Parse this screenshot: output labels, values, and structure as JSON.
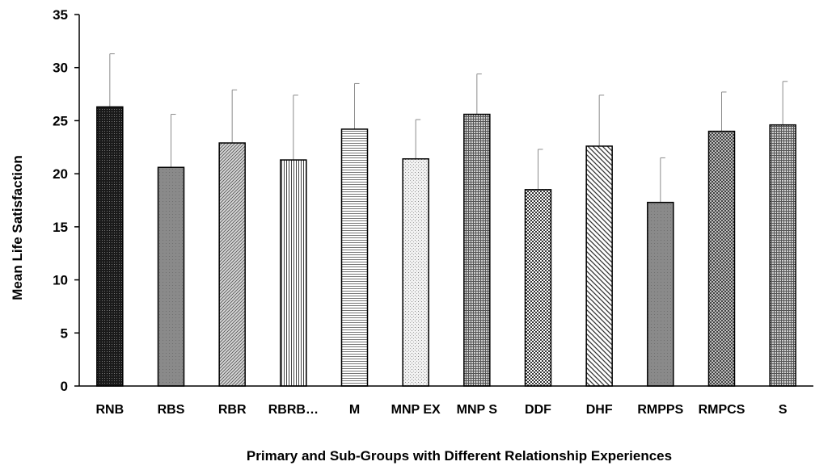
{
  "chart_data": {
    "type": "bar",
    "title": "",
    "xlabel": "Primary and Sub-Groups with Different Relationship Experiences",
    "ylabel": "Mean Life Satisfaction",
    "ylim": [
      0,
      35
    ],
    "yticks": [
      0,
      5,
      10,
      15,
      20,
      25,
      30,
      35
    ],
    "grid": false,
    "legend": "none",
    "categories": [
      "RNB",
      "RBS",
      "RBR",
      "RBRB…",
      "M",
      "MNP EX",
      "MNP S",
      "DDF",
      "DHF",
      "RMPPS",
      "RMPCS",
      "S"
    ],
    "values": [
      26.3,
      20.6,
      22.9,
      21.3,
      24.2,
      21.4,
      25.6,
      18.5,
      22.6,
      17.3,
      24.0,
      24.6
    ],
    "error_plus": [
      5.0,
      5.0,
      5.0,
      6.1,
      4.3,
      3.7,
      3.8,
      3.8,
      4.8,
      4.2,
      3.7,
      4.1
    ],
    "patterns": [
      "dense-dots",
      "solid-gray",
      "diagonal-fine",
      "vertical-lines",
      "horizontal-lines",
      "sparse-dots",
      "grid-fine",
      "checker",
      "diagonal-wide",
      "solid-gray",
      "checker-fine",
      "grid-fine"
    ]
  }
}
